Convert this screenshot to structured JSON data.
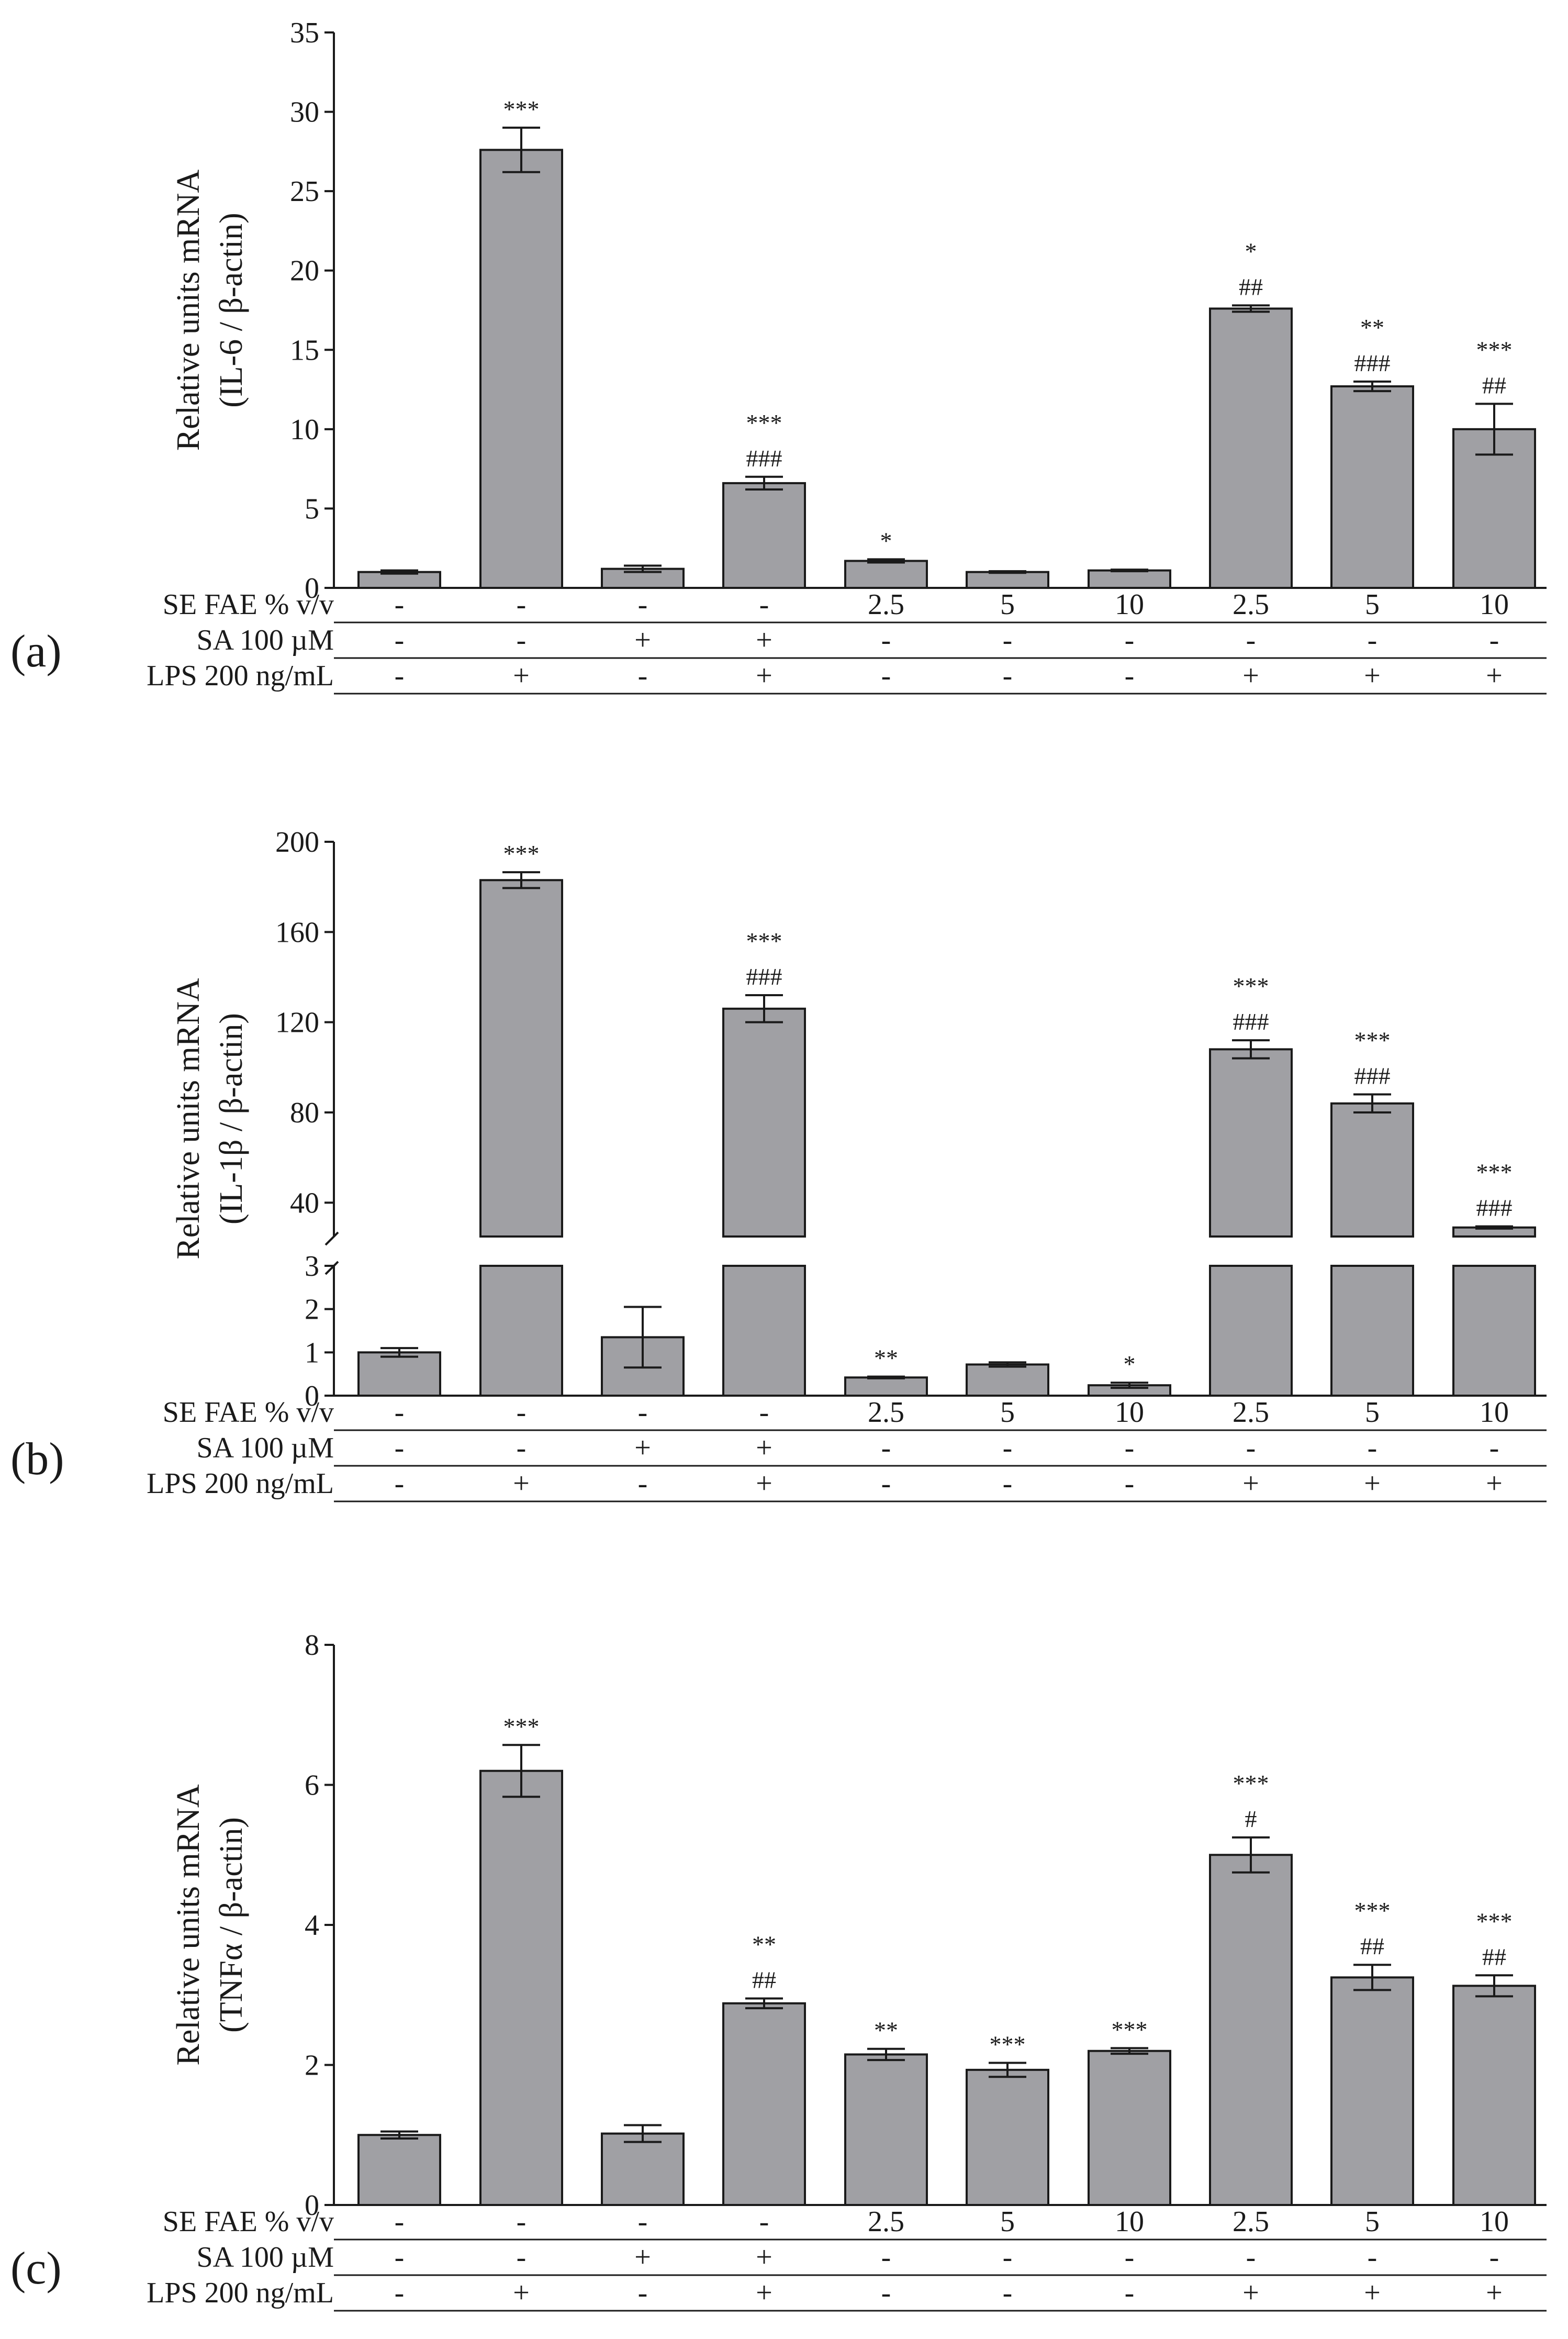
{
  "figure": {
    "conditions": {
      "se_fae_label": "SE FAE % v/v",
      "sa_label": "SA 100 µM",
      "lps_label": "LPS 200 ng/mL",
      "se_fae": [
        "-",
        "-",
        "-",
        "-",
        "2.5",
        "5",
        "10",
        "2.5",
        "5",
        "10"
      ],
      "sa": [
        "-",
        "-",
        "+",
        "+",
        "-",
        "-",
        "-",
        "-",
        "-",
        "-"
      ],
      "lps": [
        "-",
        "+",
        "-",
        "+",
        "-",
        "-",
        "-",
        "+",
        "+",
        "+"
      ]
    },
    "colors": {
      "bar": "#a0a0a4",
      "axis": "#1a1a1a"
    }
  },
  "chart_data": [
    {
      "type": "bar",
      "panel_label": "(a)",
      "ylabel_line1": "Relative units mRNA",
      "ylabel_line2": "(IL-6 / β-actin)",
      "ylim": [
        0,
        35
      ],
      "yticks": [
        0,
        5,
        10,
        15,
        20,
        25,
        30,
        35
      ],
      "values": [
        1.0,
        27.6,
        1.2,
        6.6,
        1.7,
        1.0,
        1.1,
        17.6,
        12.7,
        10.0
      ],
      "errors": [
        0.1,
        1.4,
        0.2,
        0.4,
        0.1,
        0.05,
        0.05,
        0.2,
        0.3,
        1.6
      ],
      "sig_star": [
        "",
        "***",
        "",
        "***",
        "*",
        "",
        "",
        "*",
        "**",
        "***"
      ],
      "sig_hash": [
        "",
        "",
        "",
        "###",
        "",
        "",
        "",
        "##",
        "###",
        "##"
      ]
    },
    {
      "type": "bar",
      "panel_label": "(b)",
      "ylabel_line1": "Relative units mRNA",
      "ylabel_line2": "(IL-1β / β-actin)",
      "broken_axis": true,
      "lower_ylim": [
        0,
        3
      ],
      "lower_yticks": [
        0,
        1,
        2,
        3
      ],
      "upper_ylim": [
        25,
        200
      ],
      "upper_yticks": [
        40,
        80,
        120,
        160,
        200
      ],
      "values": [
        1.0,
        183,
        1.35,
        126,
        0.42,
        0.72,
        0.24,
        108,
        84,
        29
      ],
      "errors": [
        0.1,
        3.5,
        0.7,
        6,
        0.02,
        0.05,
        0.06,
        4,
        4,
        0.5
      ],
      "sig_star": [
        "",
        "***",
        "",
        "***",
        "**",
        "",
        "*",
        "***",
        "***",
        "***"
      ],
      "sig_hash": [
        "",
        "",
        "",
        "###",
        "",
        "",
        "",
        "###",
        "###",
        "###"
      ]
    },
    {
      "type": "bar",
      "panel_label": "(c)",
      "ylabel_line1": "Relative units mRNA",
      "ylabel_line2": "(TNFα / β-actin)",
      "ylim": [
        0,
        8
      ],
      "yticks": [
        0,
        2,
        4,
        6,
        8
      ],
      "values": [
        1.0,
        6.2,
        1.02,
        2.88,
        2.15,
        1.93,
        2.2,
        5.0,
        3.25,
        3.13
      ],
      "errors": [
        0.05,
        0.37,
        0.12,
        0.07,
        0.08,
        0.1,
        0.04,
        0.25,
        0.18,
        0.15
      ],
      "sig_star": [
        "",
        "***",
        "",
        "**",
        "**",
        "***",
        "***",
        "***",
        "***",
        "***"
      ],
      "sig_hash": [
        "",
        "",
        "",
        "##",
        "",
        "",
        "",
        "#",
        "##",
        "##"
      ]
    }
  ]
}
